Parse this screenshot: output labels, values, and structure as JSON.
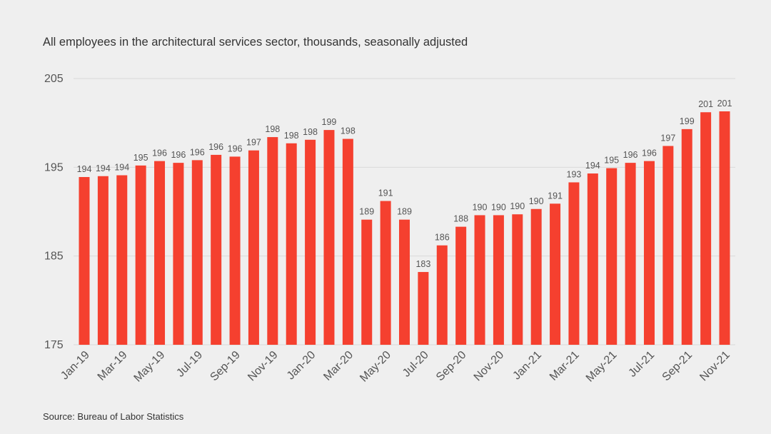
{
  "chart_data": {
    "type": "bar",
    "title": "All employees in the architectural  services sector, thousands, seasonally adjusted",
    "source": "Source: Bureau of Labor Statistics",
    "categories": [
      "Jan-19",
      null,
      "Mar-19",
      null,
      "May-19",
      null,
      "Jul-19",
      null,
      "Sep-19",
      null,
      "Nov-19",
      null,
      "Jan-20",
      null,
      "Mar-20",
      null,
      "May-20",
      null,
      "Jul-20",
      null,
      "Sep-20",
      null,
      "Nov-20",
      null,
      "Jan-21",
      null,
      "Mar-21",
      null,
      "May-21",
      null,
      "Jul-21",
      null,
      "Sep-21",
      null,
      "Nov-21"
    ],
    "values": [
      193.9,
      194.0,
      194.1,
      195.2,
      195.7,
      195.5,
      195.8,
      196.4,
      196.2,
      196.9,
      198.4,
      197.7,
      198.1,
      199.2,
      198.2,
      189.1,
      191.2,
      189.1,
      183.2,
      186.2,
      188.3,
      189.6,
      189.6,
      189.7,
      190.3,
      190.9,
      193.3,
      194.3,
      194.9,
      195.5,
      195.7,
      197.4,
      199.3,
      201.2,
      201.3
    ],
    "value_labels": [
      "194",
      "194",
      "194",
      "195",
      "196",
      "196",
      "196",
      "196",
      "196",
      "197",
      "198",
      "198",
      "198",
      "199",
      "198",
      "189",
      "191",
      "189",
      "183",
      "186",
      "188",
      "190",
      "190",
      "190",
      "190",
      "191",
      "193",
      "194",
      "195",
      "196",
      "196",
      "197",
      "199",
      "201",
      "201"
    ],
    "color": "#f5402f",
    "ylim": [
      175,
      205
    ],
    "yticks": [
      175,
      185,
      195,
      205
    ],
    "grid": true
  }
}
